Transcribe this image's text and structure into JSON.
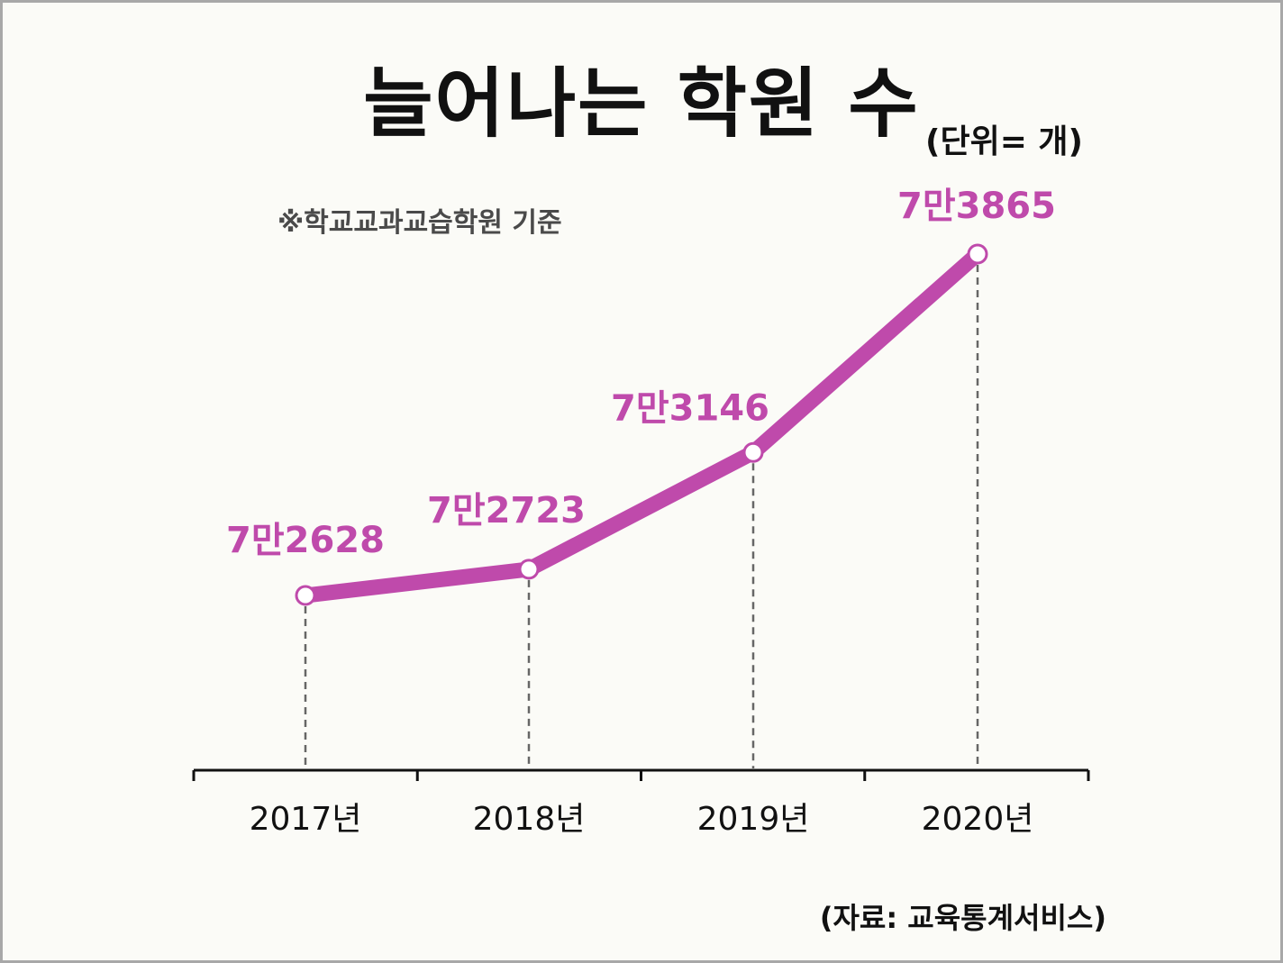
{
  "chart_data": {
    "type": "line",
    "title": "늘어나는 학원 수",
    "unit_label": "(단위= 개)",
    "note": "※학교교과교습학원 기준",
    "source": "(자료: 교육통계서비스)",
    "categories": [
      "2017년",
      "2018년",
      "2019년",
      "2020년"
    ],
    "values": [
      72628,
      72723,
      73146,
      73865
    ],
    "data_labels": [
      "7만2628",
      "7만2723",
      "7만3146",
      "7만3865"
    ],
    "line_color": "#bf4aab",
    "grid": false
  }
}
